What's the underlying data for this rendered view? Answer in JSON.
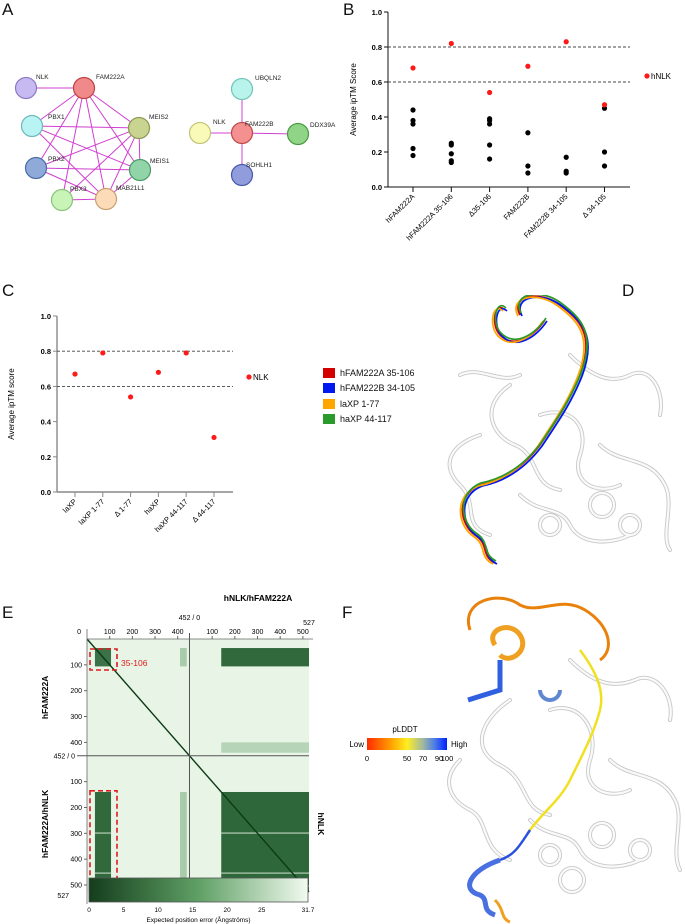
{
  "panels": {
    "A": {
      "letter": "A",
      "network1": {
        "nodes": [
          {
            "id": "NLK",
            "label": "NLK",
            "color": "#c7b9f2",
            "stroke": "#8a7cc4"
          },
          {
            "id": "FAM222A",
            "label": "FAM222A",
            "color": "#f08a8a",
            "stroke": "#c04040"
          },
          {
            "id": "PBX1",
            "label": "PBX1",
            "color": "#b8f4f4",
            "stroke": "#70b8b8"
          },
          {
            "id": "MEIS2",
            "label": "MEIS2",
            "color": "#c9d490",
            "stroke": "#8a9a50"
          },
          {
            "id": "PBX2",
            "label": "PBX2",
            "color": "#8fa9d8",
            "stroke": "#4a6aa8"
          },
          {
            "id": "MEIS1",
            "label": "MEIS1",
            "color": "#90d4a8",
            "stroke": "#4a9a68"
          },
          {
            "id": "PBX3",
            "label": "PBX3",
            "color": "#c8f4b8",
            "stroke": "#88c478"
          },
          {
            "id": "MAB21L1",
            "label": "MAB21L1",
            "color": "#fcdcb8",
            "stroke": "#c8a070"
          }
        ]
      },
      "network2": {
        "nodes": [
          {
            "id": "UBQLN2",
            "label": "UBQLN2",
            "color": "#b8f4ec",
            "stroke": "#70c4b8"
          },
          {
            "id": "NLK",
            "label": "NLK",
            "color": "#fafab8",
            "stroke": "#c4c478"
          },
          {
            "id": "FAM222B",
            "label": "FAM222B",
            "color": "#f49090",
            "stroke": "#c04848"
          },
          {
            "id": "DDX39A",
            "label": "DDX39A",
            "color": "#90d488",
            "stroke": "#489a40"
          },
          {
            "id": "SOHLH1",
            "label": "SOHLH1",
            "color": "#909cdc",
            "stroke": "#4858a8"
          }
        ]
      },
      "edge_color": "#d040d0"
    },
    "B": {
      "letter": "B",
      "ylabel": "Average ipTM Score",
      "legend": "hNLK",
      "yticks": [
        "0.0",
        "0.2",
        "0.4",
        "0.6",
        "0.8",
        "1.0"
      ],
      "categories": [
        "hFAM222A",
        "hFAM222A 35-106",
        "Δ35-106",
        "FAM222B",
        "FAM222B 34-105",
        "Δ 34-105"
      ]
    },
    "C": {
      "letter": "C",
      "ylabel": "Average ipTM score",
      "legend": "NLK",
      "yticks": [
        "0.0",
        "0.2",
        "0.4",
        "0.6",
        "0.8",
        "1.0"
      ],
      "categories": [
        "laXP",
        "laXP 1-77",
        "Δ 1-77",
        "haXP",
        "haXP 44-117",
        "Δ 44-117"
      ]
    },
    "D": {
      "letter": "D",
      "legend": [
        {
          "label": "hFAM222A 35-106",
          "color": "#d40000"
        },
        {
          "label": "hFAM222B 34-105",
          "color": "#0018f0"
        },
        {
          "label": "laXP 1-77",
          "color": "#ffa500"
        },
        {
          "label": "haXP 44-117",
          "color": "#2a9a2a"
        }
      ]
    },
    "E": {
      "letter": "E",
      "title": "hNLK/hFAM222A",
      "top_ticks_left": [
        "100",
        "200",
        "300",
        "400"
      ],
      "top_ticks_right": [
        "100",
        "200",
        "300",
        "400",
        "500"
      ],
      "top_divider_label": "452 / 0",
      "top_end_label": "527",
      "left_ticks_top": [
        "100",
        "200",
        "300",
        "400"
      ],
      "left_ticks_bottom": [
        "100",
        "200",
        "300",
        "400",
        "500"
      ],
      "origin_label": "0",
      "left_divider_label": "452 / 0",
      "left_end_label": "527",
      "ylabel_top": "hFAM222A",
      "ylabel_bottom": "hFAM222A/hNLK",
      "right_label": "hNLK",
      "highlight_label": "35-106",
      "colorbar_ticks": [
        "0",
        "5",
        "10",
        "15",
        "20",
        "25",
        "31.7"
      ],
      "colorbar_label": "Expected position error (Ångströms)"
    },
    "F": {
      "letter": "F",
      "legend_title": "pLDDT",
      "low_label": "Low",
      "high_label": "High",
      "ticks": [
        "0",
        "50",
        "70",
        "90",
        "100"
      ]
    }
  },
  "chart_data": [
    {
      "type": "scatter",
      "panel": "B",
      "title": "",
      "xlabel": "",
      "ylabel": "Average ipTM Score",
      "ylim": [
        0,
        1.0
      ],
      "reference_lines": [
        0.6,
        0.8
      ],
      "categories": [
        "hFAM222A",
        "hFAM222A 35-106",
        "Δ35-106",
        "FAM222B",
        "FAM222B 34-105",
        "Δ 34-105"
      ],
      "series": [
        {
          "name": "hNLK",
          "color": "#ff1a1a",
          "values": [
            0.68,
            0.82,
            0.54,
            0.69,
            0.83,
            0.47
          ]
        },
        {
          "name": "other",
          "color": "#000000",
          "values": [
            [
              0.44,
              0.38,
              0.36,
              0.22,
              0.18
            ],
            [
              0.25,
              0.24,
              0.19,
              0.15,
              0.14
            ],
            [
              0.39,
              0.38,
              0.36,
              0.24,
              0.16
            ],
            [
              0.31,
              0.12,
              0.08
            ],
            [
              0.17,
              0.09,
              0.08
            ],
            [
              0.45,
              0.2,
              0.12
            ]
          ]
        }
      ],
      "legend_position": "right"
    },
    {
      "type": "scatter",
      "panel": "C",
      "title": "",
      "xlabel": "",
      "ylabel": "Average ipTM score",
      "ylim": [
        0,
        1.0
      ],
      "reference_lines": [
        0.6,
        0.8
      ],
      "categories": [
        "laXP",
        "laXP 1-77",
        "Δ 1-77",
        "haXP",
        "haXP 44-117",
        "Δ 44-117"
      ],
      "series": [
        {
          "name": "NLK",
          "color": "#ff1a1a",
          "values": [
            0.67,
            0.79,
            0.54,
            0.68,
            0.79,
            0.31
          ]
        }
      ],
      "legend_position": "right"
    },
    {
      "type": "heatmap",
      "panel": "E",
      "title": "hNLK/hFAM222A",
      "xlabel": "",
      "ylabel": "hFAM222A / hFAM222A/hNLK",
      "axis_segments": [
        {
          "name": "hFAM222A",
          "range": [
            0,
            452
          ]
        },
        {
          "name": "hNLK",
          "range": [
            0,
            527
          ]
        }
      ],
      "colorbar": {
        "min": 0,
        "max": 31.7,
        "label": "Expected position error (Ångströms)",
        "ticks": [
          0,
          5,
          10,
          15,
          20,
          25,
          31.7
        ]
      },
      "highlighted_region": "35-106"
    }
  ]
}
